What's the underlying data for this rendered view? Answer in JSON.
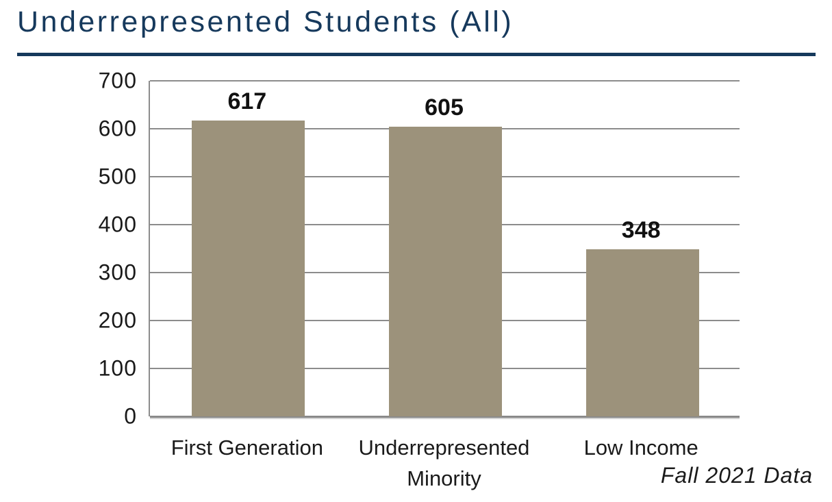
{
  "page": {
    "title": "Underrepresented Students (All)",
    "footnote": "Fall 2021 Data"
  },
  "colors": {
    "title": "#16395C",
    "bar": "#9C927B",
    "gridline": "#8C8C8C",
    "text": "#1a1a1a"
  },
  "chart_data": {
    "type": "bar",
    "title": "Underrepresented Students (All)",
    "categories": [
      "First Generation",
      "Underrepresented Minority",
      "Low Income"
    ],
    "values": [
      617,
      605,
      348
    ],
    "xlabel": "",
    "ylabel": "",
    "ylim": [
      0,
      700
    ],
    "yticks": [
      0,
      100,
      200,
      300,
      400,
      500,
      600,
      700
    ],
    "grid": true,
    "legend": false,
    "bar_color": "#9C927B",
    "gridline_color": "#8C8C8C",
    "annotation": "Fall 2021 Data",
    "annotation_style": "italic, bottom-right"
  }
}
